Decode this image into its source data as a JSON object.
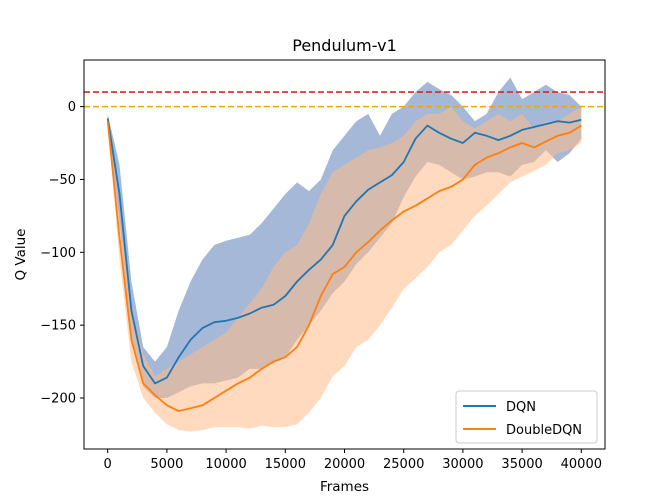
{
  "chart_data": {
    "type": "line",
    "title": "Pendulum-v1",
    "xlabel": "Frames",
    "ylabel": "Q Value",
    "xlim": [
      -2000,
      42000
    ],
    "ylim": [
      -235,
      32
    ],
    "x_ticks": [
      0,
      5000,
      10000,
      15000,
      20000,
      25000,
      30000,
      35000,
      40000
    ],
    "y_ticks": [
      0,
      -50,
      -100,
      -150,
      -200
    ],
    "grid": false,
    "legend_position": "lower-right",
    "reference_lines": [
      {
        "name": "red-dashed-line",
        "y": 10,
        "color": "#d62728",
        "style": "dashed"
      },
      {
        "name": "orange-dashed-line",
        "y": 0,
        "color": "#f0a30a",
        "style": "dashed"
      }
    ],
    "series": [
      {
        "name": "DQN",
        "color": "#1f77b4",
        "band_color": "#4c72b0",
        "x": [
          0,
          1000,
          2000,
          3000,
          4000,
          5000,
          6000,
          7000,
          8000,
          9000,
          10000,
          11000,
          12000,
          13000,
          14000,
          15000,
          16000,
          17000,
          18000,
          19000,
          20000,
          21000,
          22000,
          23000,
          24000,
          25000,
          26000,
          27000,
          28000,
          29000,
          30000,
          31000,
          32000,
          33000,
          34000,
          35000,
          36000,
          37000,
          38000,
          39000,
          40000
        ],
        "mean": [
          -8,
          -60,
          -140,
          -178,
          -190,
          -186,
          -172,
          -160,
          -152,
          -148,
          -147,
          -145,
          -142,
          -138,
          -136,
          -130,
          -120,
          -112,
          -105,
          -95,
          -75,
          -65,
          -57,
          -52,
          -47,
          -38,
          -22,
          -13,
          -18,
          -22,
          -25,
          -18,
          -20,
          -23,
          -20,
          -16,
          -14,
          -12,
          -10,
          -11,
          -9
        ],
        "upper": [
          -5,
          -40,
          -120,
          -165,
          -175,
          -165,
          -140,
          -120,
          -105,
          -95,
          -92,
          -90,
          -88,
          -80,
          -70,
          -60,
          -52,
          -58,
          -50,
          -30,
          -20,
          -10,
          -5,
          -20,
          -5,
          0,
          10,
          17,
          12,
          8,
          0,
          -10,
          -5,
          10,
          20,
          5,
          10,
          15,
          10,
          8,
          0
        ],
        "lower": [
          -10,
          -80,
          -160,
          -192,
          -200,
          -200,
          -196,
          -192,
          -190,
          -190,
          -188,
          -186,
          -180,
          -180,
          -176,
          -172,
          -160,
          -150,
          -140,
          -128,
          -120,
          -108,
          -100,
          -90,
          -80,
          -62,
          -48,
          -38,
          -40,
          -45,
          -50,
          -48,
          -45,
          -45,
          -48,
          -40,
          -38,
          -30,
          -38,
          -32,
          -22
        ]
      },
      {
        "name": "DoubleDQN",
        "color": "#ff7f0e",
        "band_color": "#ffbb88",
        "x": [
          0,
          1000,
          2000,
          3000,
          4000,
          5000,
          6000,
          7000,
          8000,
          9000,
          10000,
          11000,
          12000,
          13000,
          14000,
          15000,
          16000,
          17000,
          18000,
          19000,
          20000,
          21000,
          22000,
          23000,
          24000,
          25000,
          26000,
          27000,
          28000,
          29000,
          30000,
          31000,
          32000,
          33000,
          34000,
          35000,
          36000,
          37000,
          38000,
          39000,
          40000
        ],
        "mean": [
          -10,
          -90,
          -160,
          -190,
          -198,
          -205,
          -209,
          -207,
          -205,
          -200,
          -195,
          -190,
          -186,
          -180,
          -175,
          -172,
          -165,
          -150,
          -130,
          -115,
          -110,
          -100,
          -93,
          -85,
          -78,
          -72,
          -68,
          -63,
          -58,
          -55,
          -50,
          -40,
          -35,
          -32,
          -28,
          -25,
          -28,
          -24,
          -20,
          -18,
          -13
        ],
        "upper": [
          -8,
          -75,
          -140,
          -170,
          -185,
          -180,
          -175,
          -170,
          -165,
          -160,
          -155,
          -145,
          -135,
          -125,
          -110,
          -100,
          -95,
          -80,
          -60,
          -45,
          -40,
          -35,
          -30,
          -28,
          -25,
          -20,
          -10,
          -5,
          -5,
          0,
          -10,
          -15,
          -10,
          -5,
          -10,
          -5,
          -15,
          -10,
          -10,
          -5,
          0
        ],
        "lower": [
          -12,
          -105,
          -175,
          -200,
          -210,
          -218,
          -222,
          -223,
          -222,
          -220,
          -220,
          -220,
          -221,
          -219,
          -220,
          -220,
          -218,
          -210,
          -200,
          -185,
          -178,
          -165,
          -160,
          -150,
          -138,
          -125,
          -118,
          -110,
          -100,
          -95,
          -85,
          -75,
          -68,
          -60,
          -52,
          -48,
          -44,
          -40,
          -32,
          -30,
          -25
        ]
      }
    ]
  }
}
